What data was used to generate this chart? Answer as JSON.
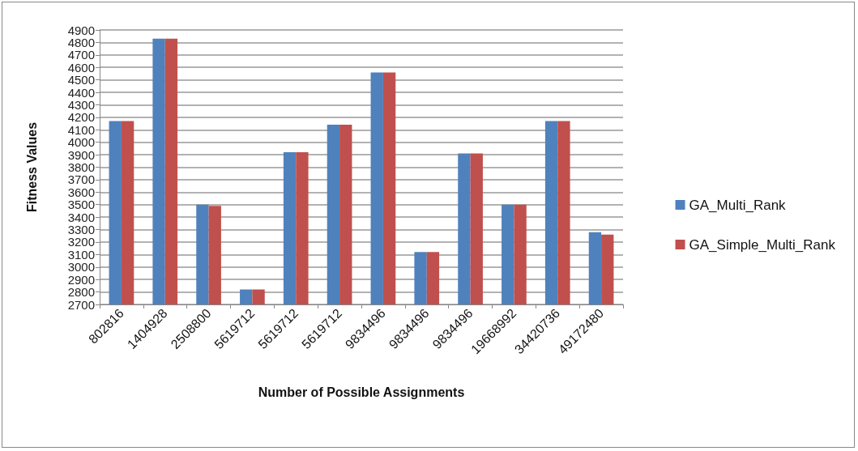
{
  "chart_data": {
    "type": "bar",
    "xlabel": "Number of Possible Assignments",
    "ylabel": "Fitness Values",
    "categories": [
      "802816",
      "1404928",
      "2508800",
      "5619712",
      "5619712",
      "5619712",
      "9834496",
      "9834496",
      "9834496",
      "19668992",
      "34420736",
      "49172480"
    ],
    "series": [
      {
        "name": "GA_Multi_Rank",
        "color": "#4f81bd",
        "values": [
          4170,
          4830,
          3500,
          2820,
          3920,
          4140,
          4560,
          3120,
          3910,
          3500,
          4170,
          3280
        ]
      },
      {
        "name": "GA_Simple_Multi_Rank",
        "color": "#c0504d",
        "values": [
          4170,
          4830,
          3490,
          2820,
          3920,
          4140,
          4560,
          3120,
          3910,
          3500,
          4170,
          3260
        ]
      }
    ],
    "ylim": [
      2700,
      4900
    ],
    "yticks": [
      2700,
      2800,
      2900,
      3000,
      3100,
      3200,
      3300,
      3400,
      3500,
      3600,
      3700,
      3800,
      3900,
      4000,
      4100,
      4200,
      4300,
      4400,
      4500,
      4600,
      4700,
      4800,
      4900
    ],
    "grid": "y",
    "legend": "right"
  }
}
